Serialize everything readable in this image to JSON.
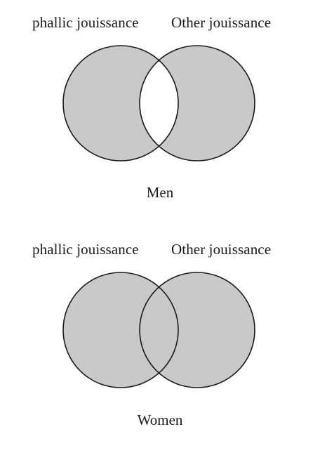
{
  "colors": {
    "circle_fill": "#c9c9ca",
    "overlap_men": "#ffffff",
    "overlap_women": "#c9c9ca",
    "outline": "#1a1a1a",
    "background": "#ffffff"
  },
  "diagrams": [
    {
      "left_label": "phallic jouissance",
      "right_label": "Other jouissance",
      "caption": "Men",
      "overlap_filled": false
    },
    {
      "left_label": "phallic jouissance",
      "right_label": "Other jouissance",
      "caption": "Women",
      "overlap_filled": true
    }
  ]
}
